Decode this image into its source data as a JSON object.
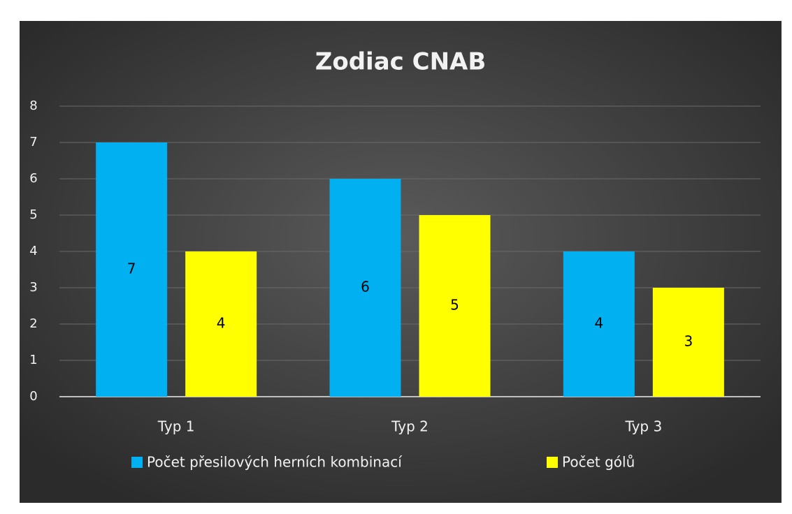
{
  "chart_data": {
    "type": "bar",
    "title": "Zodiac CNAB",
    "categories": [
      "Typ 1",
      "Typ 2",
      "Typ 3"
    ],
    "series": [
      {
        "name": "Počet přesilových herních kombinací",
        "color": "#00b0f0",
        "values": [
          7,
          6,
          4
        ]
      },
      {
        "name": "Počet gólů",
        "color": "#ffff00",
        "values": [
          4,
          5,
          3
        ]
      }
    ],
    "ylim": [
      0,
      8
    ],
    "yticks": [
      0,
      1,
      2,
      3,
      4,
      5,
      6,
      7,
      8
    ],
    "grid": true,
    "legend": "bottom",
    "data_labels": true
  }
}
